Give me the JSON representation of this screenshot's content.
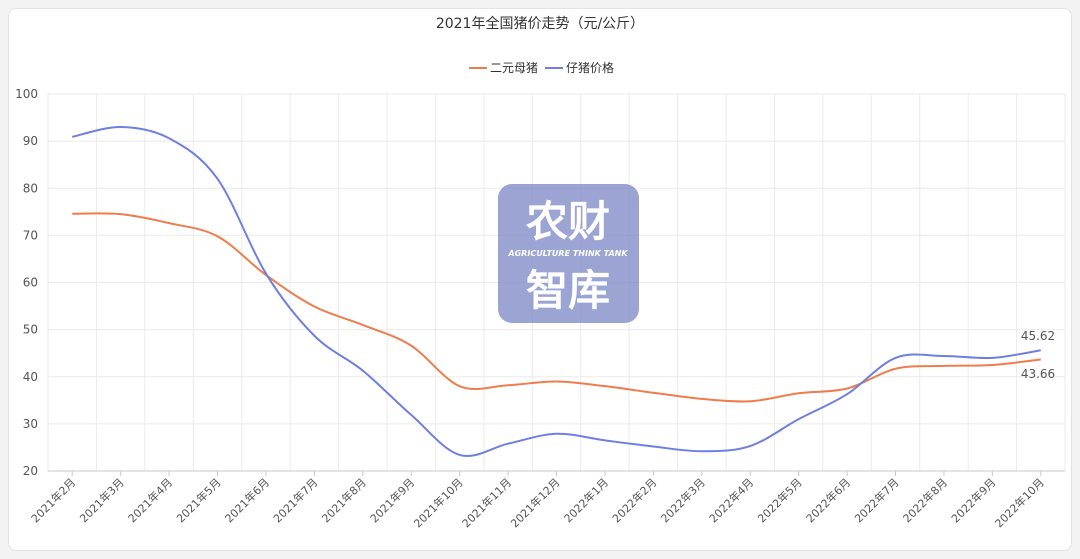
{
  "chart_data": {
    "type": "line",
    "title": "2021年全国猪价走势（元/公斤）",
    "categories": [
      "2021年2月",
      "2021年3月",
      "2021年4月",
      "2021年5月",
      "2021年6月",
      "2021年7月",
      "2021年8月",
      "2021年9月",
      "2021年10月",
      "2021年11月",
      "2021年12月",
      "2022年1月",
      "2022年2月",
      "2022年3月",
      "2022年4月",
      "2022年5月",
      "2022年6月",
      "2022年7月",
      "2022年8月",
      "2022年9月",
      "2022年10月"
    ],
    "series": [
      {
        "name": "二元母猪",
        "color": "#ee7d4e",
        "values": [
          74.6,
          74.5,
          72.6,
          69.8,
          61.6,
          54.9,
          51.0,
          46.6,
          38.0,
          38.2,
          39.0,
          38.0,
          36.6,
          35.3,
          34.8,
          36.5,
          37.5,
          41.7,
          42.3,
          42.5,
          43.66
        ]
      },
      {
        "name": "仔猪价格",
        "color": "#6e7fe0",
        "values": [
          90.9,
          93.0,
          90.6,
          82.0,
          61.9,
          48.7,
          41.3,
          31.9,
          23.4,
          25.8,
          27.9,
          26.5,
          25.2,
          24.2,
          25.3,
          31.0,
          36.3,
          44.0,
          44.4,
          44.0,
          45.62
        ]
      }
    ],
    "ylim": [
      20,
      100
    ],
    "yticks": [
      20,
      30,
      40,
      50,
      60,
      70,
      80,
      90,
      100
    ],
    "grid": true,
    "legend": "top-center",
    "end_labels": {
      "series_0": "43.66",
      "series_1": "45.62"
    }
  },
  "watermark": {
    "line1": "农财",
    "line2": "AGRICULTURE THINK TANK",
    "line3": "智库",
    "color": "#7b86c6"
  }
}
